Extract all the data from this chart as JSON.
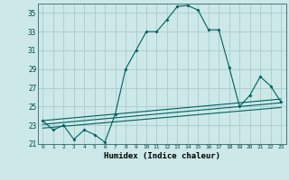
{
  "title": "",
  "xlabel": "Humidex (Indice chaleur)",
  "bg_color": "#cce8e8",
  "grid_color": "#aacccc",
  "line_color": "#006060",
  "xlim": [
    -0.5,
    23.5
  ],
  "ylim": [
    21,
    36
  ],
  "yticks": [
    21,
    23,
    25,
    27,
    29,
    31,
    33,
    35
  ],
  "xticks": [
    0,
    1,
    2,
    3,
    4,
    5,
    6,
    7,
    8,
    9,
    10,
    11,
    12,
    13,
    14,
    15,
    16,
    17,
    18,
    19,
    20,
    21,
    22,
    23
  ],
  "main_series": [
    [
      0,
      23.5
    ],
    [
      1,
      22.5
    ],
    [
      2,
      23.0
    ],
    [
      3,
      21.5
    ],
    [
      4,
      22.5
    ],
    [
      5,
      22.0
    ],
    [
      6,
      21.2
    ],
    [
      7,
      24.2
    ],
    [
      8,
      29.0
    ],
    [
      9,
      31.0
    ],
    [
      10,
      33.0
    ],
    [
      11,
      33.0
    ],
    [
      12,
      34.3
    ],
    [
      13,
      35.7
    ],
    [
      14,
      35.8
    ],
    [
      15,
      35.3
    ],
    [
      16,
      33.2
    ],
    [
      17,
      33.2
    ],
    [
      18,
      29.2
    ],
    [
      19,
      25.0
    ],
    [
      20,
      26.2
    ],
    [
      21,
      28.2
    ],
    [
      22,
      27.2
    ],
    [
      23,
      25.5
    ]
  ],
  "line2": [
    [
      0,
      23.5
    ],
    [
      23,
      25.8
    ]
  ],
  "line3": [
    [
      0,
      23.1
    ],
    [
      23,
      25.4
    ]
  ],
  "line4": [
    [
      0,
      22.7
    ],
    [
      23,
      24.9
    ]
  ]
}
